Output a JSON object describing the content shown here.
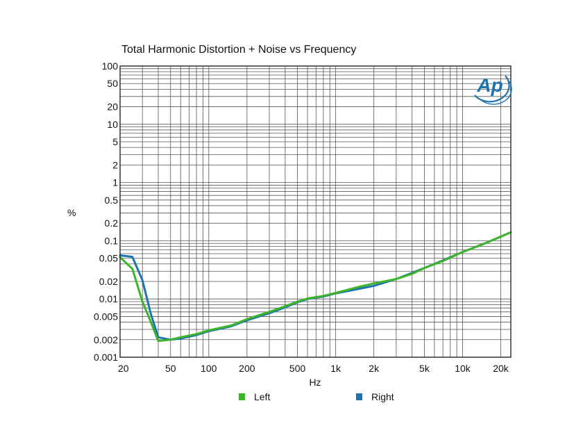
{
  "chart_data": {
    "type": "line",
    "title": "Total Harmonic Distortion + Noise vs Frequency",
    "xlabel": "Hz",
    "ylabel": "%",
    "x_scale": "log",
    "y_scale": "log",
    "xlim": [
      20,
      24000
    ],
    "ylim": [
      0.001,
      100
    ],
    "grid": true,
    "legend_position": "bottom",
    "x_ticks": [
      {
        "value": 20,
        "label": "20"
      },
      {
        "value": 50,
        "label": "50"
      },
      {
        "value": 100,
        "label": "100"
      },
      {
        "value": 200,
        "label": "200"
      },
      {
        "value": 500,
        "label": "500"
      },
      {
        "value": 1000,
        "label": "1k"
      },
      {
        "value": 2000,
        "label": "2k"
      },
      {
        "value": 5000,
        "label": "5k"
      },
      {
        "value": 10000,
        "label": "10k"
      },
      {
        "value": 20000,
        "label": "20k"
      }
    ],
    "y_ticks": [
      {
        "value": 100,
        "label": "100"
      },
      {
        "value": 50,
        "label": "50"
      },
      {
        "value": 20,
        "label": "20"
      },
      {
        "value": 10,
        "label": "10"
      },
      {
        "value": 5,
        "label": "5"
      },
      {
        "value": 2,
        "label": "2"
      },
      {
        "value": 1,
        "label": "1"
      },
      {
        "value": 0.5,
        "label": "0.5"
      },
      {
        "value": 0.2,
        "label": "0.2"
      },
      {
        "value": 0.1,
        "label": "0.1"
      },
      {
        "value": 0.05,
        "label": "0.05"
      },
      {
        "value": 0.02,
        "label": "0.02"
      },
      {
        "value": 0.01,
        "label": "0.01"
      },
      {
        "value": 0.005,
        "label": "0.005"
      },
      {
        "value": 0.002,
        "label": "0.002"
      },
      {
        "value": 0.001,
        "label": "0.001"
      }
    ],
    "series": [
      {
        "name": "Left",
        "color": "#3cb52a",
        "x": [
          20,
          25,
          30,
          35,
          40,
          50,
          60,
          80,
          100,
          150,
          200,
          300,
          400,
          500,
          600,
          800,
          1000,
          1500,
          2000,
          3000,
          4000,
          5000,
          7000,
          10000,
          15000,
          24000
        ],
        "y": [
          0.052,
          0.033,
          0.009,
          0.004,
          0.0019,
          0.002,
          0.0022,
          0.0025,
          0.0029,
          0.0035,
          0.0045,
          0.006,
          0.0075,
          0.009,
          0.0102,
          0.0113,
          0.0127,
          0.016,
          0.0185,
          0.022,
          0.027,
          0.034,
          0.045,
          0.064,
          0.09,
          0.14
        ]
      },
      {
        "name": "Right",
        "color": "#1e74b0",
        "x": [
          20,
          25,
          30,
          35,
          40,
          50,
          60,
          80,
          100,
          150,
          200,
          300,
          400,
          500,
          600,
          800,
          1000,
          1500,
          2000,
          3000,
          4000,
          5000,
          7000,
          10000,
          15000,
          24000
        ],
        "y": [
          0.056,
          0.053,
          0.021,
          0.0055,
          0.0022,
          0.002,
          0.0021,
          0.0024,
          0.0028,
          0.0034,
          0.0043,
          0.0057,
          0.0072,
          0.0088,
          0.01,
          0.011,
          0.0125,
          0.0148,
          0.0168,
          0.022,
          0.028,
          0.034,
          0.046,
          0.064,
          0.09,
          0.14
        ]
      }
    ]
  },
  "logo": {
    "text": "Ap",
    "color": "#1e74b0"
  }
}
